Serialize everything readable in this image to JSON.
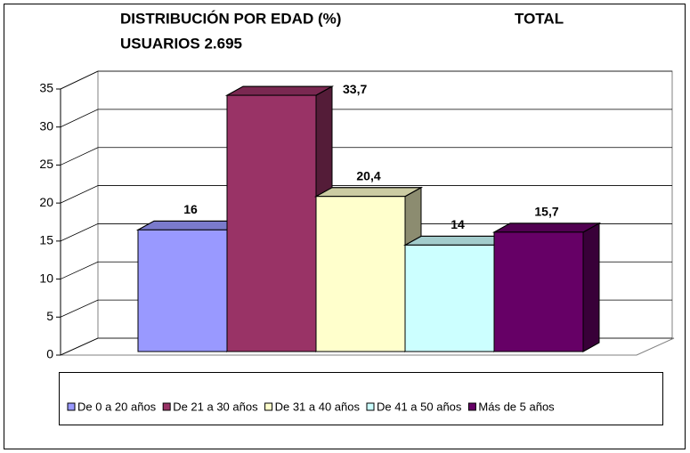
{
  "chart_data": {
    "type": "bar3d",
    "title": "DISTRIBUCIÓN POR EDAD (%)",
    "subtitle": "TOTAL",
    "caption": "USUARIOS 2.695",
    "categories": [
      null
    ],
    "series": [
      {
        "name": "De 0 a 20 años",
        "color": "#9999ff",
        "values": [
          16
        ]
      },
      {
        "name": "De 21 a 30 años",
        "color": "#993366",
        "values": [
          33.7
        ],
        "value_labels": [
          "33,7"
        ]
      },
      {
        "name": "De 31 a 40 años",
        "color": "#ffffcc",
        "values": [
          20.4
        ],
        "value_labels": [
          "20,4"
        ]
      },
      {
        "name": "De 41 a 50 años",
        "color": "#ccffff",
        "values": [
          14
        ]
      },
      {
        "name": "Más de 5 años",
        "color": "#660066",
        "values": [
          15.7
        ],
        "value_labels": [
          "15,7"
        ]
      }
    ],
    "ylim": [
      0,
      35
    ],
    "yticks": [
      0,
      5,
      10,
      15,
      20,
      25,
      30,
      35
    ],
    "grid": true,
    "legend": "bottom"
  }
}
